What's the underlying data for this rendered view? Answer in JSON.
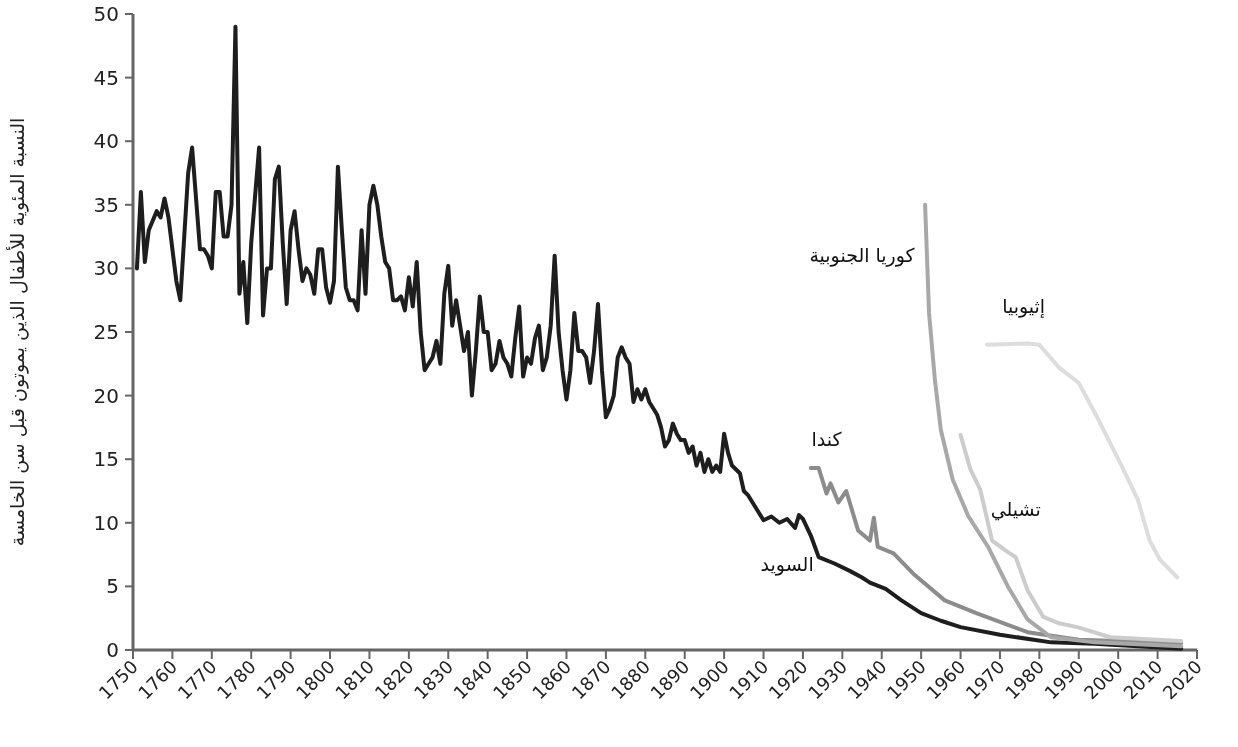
{
  "chart_data": {
    "type": "line",
    "ylabel": "النسبة المئوية للأطفال الذين يموتون قبل سن الخامسة",
    "xlim": [
      1750,
      2020
    ],
    "xticks": [
      1750,
      1760,
      1770,
      1780,
      1790,
      1800,
      1810,
      1820,
      1830,
      1840,
      1850,
      1860,
      1870,
      1880,
      1890,
      1900,
      1910,
      1920,
      1930,
      1940,
      1950,
      1960,
      1970,
      1980,
      1990,
      2000,
      2010,
      2020
    ],
    "ylim": [
      0,
      50
    ],
    "yticks": [
      0,
      5,
      10,
      15,
      20,
      25,
      30,
      35,
      40,
      45,
      50
    ],
    "grid": false,
    "legend": false,
    "marker": "none",
    "line_style": "solid",
    "series": [
      {
        "name": "السويد",
        "color": "#1e1e1e",
        "x": [
          1751,
          1752,
          1753,
          1754,
          1756,
          1757,
          1758,
          1759,
          1761,
          1762,
          1764,
          1765,
          1767,
          1768,
          1769,
          1770,
          1771,
          1772,
          1773,
          1774,
          1775,
          1776,
          1777,
          1778,
          1779,
          1780,
          1782,
          1783,
          1784,
          1785,
          1786,
          1787,
          1788,
          1789,
          1790,
          1791,
          1792,
          1793,
          1794,
          1795,
          1796,
          1797,
          1798,
          1799,
          1800,
          1801,
          1802,
          1803,
          1804,
          1805,
          1806,
          1807,
          1808,
          1809,
          1810,
          1811,
          1812,
          1813,
          1814,
          1815,
          1816,
          1817,
          1818,
          1819,
          1820,
          1821,
          1822,
          1823,
          1824,
          1825,
          1826,
          1827,
          1828,
          1829,
          1830,
          1831,
          1832,
          1833,
          1834,
          1835,
          1836,
          1837,
          1838,
          1839,
          1840,
          1841,
          1842,
          1843,
          1844,
          1845,
          1846,
          1847,
          1848,
          1849,
          1850,
          1851,
          1852,
          1853,
          1854,
          1855,
          1856,
          1857,
          1858,
          1859,
          1860,
          1861,
          1862,
          1863,
          1864,
          1865,
          1866,
          1867,
          1868,
          1869,
          1870,
          1871,
          1872,
          1873,
          1874,
          1875,
          1876,
          1877,
          1878,
          1879,
          1880,
          1881,
          1882,
          1883,
          1884,
          1885,
          1886,
          1887,
          1888,
          1889,
          1890,
          1891,
          1892,
          1893,
          1894,
          1895,
          1896,
          1897,
          1898,
          1899,
          1900,
          1901,
          1902,
          1904,
          1905,
          1906,
          1908,
          1910,
          1912,
          1914,
          1916,
          1918,
          1919,
          1920,
          1922,
          1924,
          1928,
          1932,
          1935,
          1937,
          1941,
          1945,
          1950,
          1955,
          1960,
          1970,
          1983,
          1994,
          2016
        ],
        "values": [
          30,
          36,
          30.5,
          33,
          34.5,
          34,
          35.5,
          34,
          29,
          27.5,
          37.5,
          39.5,
          31.5,
          31.5,
          31,
          30,
          36,
          36,
          32.5,
          32.5,
          35,
          49,
          28,
          30.5,
          25.7,
          32,
          39.5,
          26.3,
          30,
          30,
          37,
          38,
          32,
          27.2,
          33,
          34.5,
          31.5,
          29,
          30,
          29.5,
          28,
          31.5,
          31.5,
          28.5,
          27.3,
          29,
          38,
          33,
          28.5,
          27.5,
          27.5,
          26.7,
          33,
          28,
          35,
          36.5,
          35,
          32.5,
          30.5,
          30,
          27.5,
          27.5,
          27.8,
          26.7,
          29.3,
          27,
          30.5,
          25,
          22,
          22.5,
          23,
          24.3,
          22.5,
          28,
          30.2,
          25.5,
          27.5,
          25.5,
          23.5,
          25,
          20,
          23.5,
          27.8,
          25,
          25,
          22,
          22.5,
          24.3,
          23,
          22.5,
          21.5,
          24.5,
          27,
          21.5,
          23,
          22.5,
          24.5,
          25.5,
          22,
          23,
          25.5,
          31,
          25,
          22,
          19.7,
          22,
          26.5,
          23.5,
          23.5,
          23,
          21,
          23.5,
          27.2,
          22,
          18.3,
          19,
          20,
          23,
          23.8,
          23,
          22.5,
          19.5,
          20.5,
          19.7,
          20.5,
          19.5,
          19,
          18.5,
          17.5,
          16,
          16.5,
          17.8,
          17,
          16.5,
          16.5,
          15.5,
          16,
          14.5,
          15.5,
          14,
          15,
          14,
          14.5,
          14,
          17,
          15.5,
          14.5,
          13.9,
          12.5,
          12.2,
          11.2,
          10.2,
          10.5,
          10,
          10.3,
          9.6,
          10.6,
          10.3,
          9,
          7.3,
          6.8,
          6.2,
          5.7,
          5.3,
          4.8,
          3.9,
          2.9,
          2.3,
          1.8,
          1.2,
          0.6,
          0.5,
          0.1
        ]
      },
      {
        "name": "كندا",
        "color": "#8c8c8c",
        "x": [
          1922,
          1924,
          1926,
          1927,
          1929,
          1931,
          1934,
          1937,
          1938,
          1939,
          1943,
          1948,
          1956,
          1964,
          1977,
          1990,
          2016
        ],
        "values": [
          14.3,
          14.3,
          12.3,
          13.1,
          11.6,
          12.5,
          9.4,
          8.6,
          10.4,
          8.1,
          7.6,
          6,
          3.9,
          2.9,
          1.4,
          0.8,
          0.55
        ]
      },
      {
        "name": "كوريا الجنوبية",
        "color": "#a8a8a8",
        "x": [
          1951,
          1952,
          1953.5,
          1955,
          1958,
          1962,
          1967,
          1972,
          1977,
          1983,
          1994,
          2016
        ],
        "values": [
          35,
          26.5,
          21.2,
          17.3,
          13.4,
          10.5,
          8.1,
          5,
          2.4,
          1,
          0.6,
          0.3
        ]
      },
      {
        "name": "تشيلي",
        "color": "#cccccc",
        "x": [
          1960,
          1962.5,
          1965,
          1968,
          1972,
          1974,
          1977,
          1981,
          1985,
          1989.6,
          1998,
          2016
        ],
        "values": [
          16.9,
          14.2,
          12.6,
          8.6,
          7.7,
          7.3,
          4.7,
          2.6,
          2.1,
          1.8,
          1,
          0.7
        ]
      },
      {
        "name": "إثيوبيا",
        "color": "#dddddd",
        "x": [
          1966.7,
          1977,
          1980,
          1985,
          1990,
          1995,
          2001,
          2005,
          2008,
          2010.6,
          2015
        ],
        "values": [
          24,
          24.1,
          24,
          22.2,
          21,
          18.1,
          14.4,
          11.8,
          8.6,
          7.1,
          5.7
        ]
      }
    ]
  }
}
